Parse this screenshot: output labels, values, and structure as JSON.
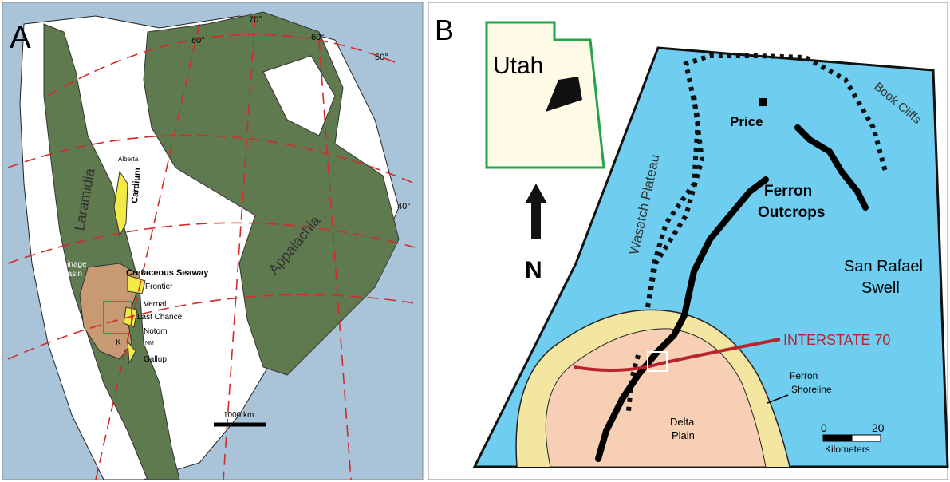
{
  "panel_a": {
    "label": "A",
    "graticule_labels": [
      "80°",
      "70°",
      "60°",
      "50°",
      "40°"
    ],
    "regions": {
      "laramidia": "Laramidia",
      "appalachia": "Appalachia",
      "seaway": "Cretaceous Seaway",
      "drainage": [
        "Drainage",
        "Basin"
      ]
    },
    "localities": [
      "Alberta",
      "Cardium",
      "Frontier",
      "Vernal",
      "Last Chance",
      "Notom",
      "NM",
      "K",
      "Gallup"
    ],
    "scale": "1000 km"
  },
  "panel_b": {
    "label": "B",
    "state": "Utah",
    "north": "N",
    "features": {
      "book_cliffs": "Book Cliffs",
      "price": "Price",
      "wasatch": "Wasatch Plateau",
      "ferron_outcrops": [
        "Ferron",
        "Outcrops"
      ],
      "san_rafael": [
        "San Rafael",
        "Swell"
      ],
      "interstate": "INTERSTATE 70",
      "shoreline": [
        "Ferron",
        "Shoreline"
      ],
      "delta": [
        "Delta",
        "Plain"
      ]
    },
    "scale": {
      "min": "0",
      "max": "20",
      "unit": "Kilometers"
    }
  }
}
